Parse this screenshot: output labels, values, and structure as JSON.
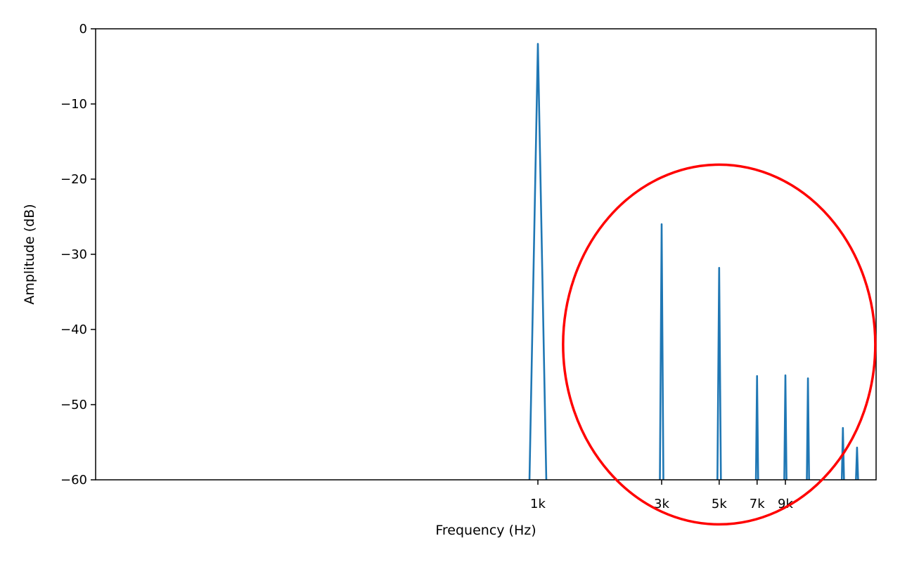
{
  "chart_data": {
    "type": "line",
    "xscale": "log",
    "xlabel": "Frequency (Hz)",
    "ylabel": "Amplitude (dB)",
    "xlim": [
      50,
      16000
    ],
    "ylim": [
      -60,
      0
    ],
    "grid": false,
    "xticks": [
      {
        "value": 1000,
        "label": "1k"
      },
      {
        "value": 3000,
        "label": "3k"
      },
      {
        "value": 5000,
        "label": "5k"
      },
      {
        "value": 7000,
        "label": "7k"
      },
      {
        "value": 9000,
        "label": "9k"
      }
    ],
    "yticks": [
      {
        "value": 0,
        "label": "0"
      },
      {
        "value": -10,
        "label": "−10"
      },
      {
        "value": -20,
        "label": "−20"
      },
      {
        "value": -30,
        "label": "−30"
      },
      {
        "value": -40,
        "label": "−40"
      },
      {
        "value": -50,
        "label": "−50"
      },
      {
        "value": -60,
        "label": "−60"
      }
    ],
    "series": [
      {
        "color": "#1f77b4",
        "peaks": [
          {
            "x": 1000,
            "y": -2
          },
          {
            "x": 3000,
            "y": -26
          },
          {
            "x": 5000,
            "y": -31.8
          },
          {
            "x": 7000,
            "y": -46.2
          },
          {
            "x": 9000,
            "y": -46.1
          },
          {
            "x": 11000,
            "y": -46.5
          },
          {
            "x": 15000,
            "y": -53.1
          },
          {
            "x": 17000,
            "y": -55.7
          }
        ]
      }
    ],
    "annotations": [
      {
        "shape": "ellipse",
        "color": "#ff0000",
        "center": {
          "x": 5000,
          "y": -42
        },
        "encloses": "harmonics 3k–17k"
      }
    ]
  }
}
